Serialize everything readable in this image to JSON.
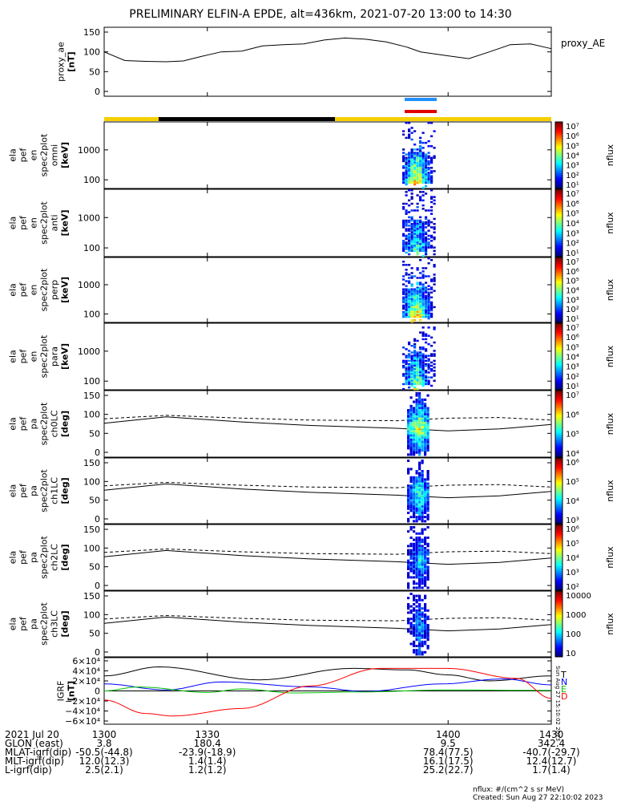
{
  "title": "PRELIMINARY ELFIN-A EPDE, alt=436km, 2021-07-20 13:00 to 14:30",
  "panels": [
    {
      "id": "ae",
      "ylabel_lines": [
        "proxy_ae",
        "[nT]"
      ],
      "legend": "proxy_AE",
      "yticks": [
        "150",
        "100",
        "50",
        "0"
      ]
    },
    {
      "id": "omni",
      "ylabel_lines": [
        "ela",
        "pef",
        "en",
        "spec2plot",
        "omni",
        "[keV]"
      ],
      "yticks": [
        "1000",
        "100"
      ],
      "cbar_ticks": [
        "10⁷",
        "10⁶",
        "10⁵",
        "10⁴",
        "10³",
        "10²",
        "10¹"
      ],
      "cbar_label": "nflux"
    },
    {
      "id": "anti",
      "ylabel_lines": [
        "ela",
        "pef",
        "en",
        "spec2plot",
        "anti",
        "[keV]"
      ],
      "yticks": [
        "1000",
        "100"
      ],
      "cbar_ticks": [
        "10⁷",
        "10⁶",
        "10⁵",
        "10⁴",
        "10³",
        "10²",
        "10¹"
      ],
      "cbar_label": "nflux"
    },
    {
      "id": "perp",
      "ylabel_lines": [
        "ela",
        "pef",
        "en",
        "spec2plot",
        "perp",
        "[keV]"
      ],
      "yticks": [
        "1000",
        "100"
      ],
      "cbar_ticks": [
        "10⁷",
        "10⁶",
        "10⁵",
        "10⁴",
        "10³",
        "10²",
        "10¹"
      ],
      "cbar_label": "nflux"
    },
    {
      "id": "para",
      "ylabel_lines": [
        "ela",
        "pef",
        "en",
        "spec2plot",
        "para",
        "[keV]"
      ],
      "yticks": [
        "1000",
        "100"
      ],
      "cbar_ticks": [
        "10⁷",
        "10⁶",
        "10⁵",
        "10⁴",
        "10³",
        "10²",
        "10¹"
      ],
      "cbar_label": "nflux"
    },
    {
      "id": "ch0",
      "ylabel_lines": [
        "ela",
        "pef",
        "pa",
        "spec2plot",
        "ch0LC",
        "[deg]"
      ],
      "yticks": [
        "150",
        "100",
        "50",
        "0"
      ],
      "cbar_ticks": [
        "10⁷",
        "10⁶",
        "10⁵",
        "10⁴"
      ],
      "cbar_label": "nflux"
    },
    {
      "id": "ch1",
      "ylabel_lines": [
        "ela",
        "pef",
        "pa",
        "spec2plot",
        "ch1LC",
        "[deg]"
      ],
      "yticks": [
        "150",
        "100",
        "50",
        "0"
      ],
      "cbar_ticks": [
        "10⁶",
        "10⁵",
        "10⁴",
        "10³"
      ],
      "cbar_label": "nflux"
    },
    {
      "id": "ch2",
      "ylabel_lines": [
        "ela",
        "pef",
        "pa",
        "spec2plot",
        "ch2LC",
        "[deg]"
      ],
      "yticks": [
        "150",
        "100",
        "50",
        "0"
      ],
      "cbar_ticks": [
        "10⁶",
        "10⁵",
        "10⁴",
        "10³",
        "10²"
      ],
      "cbar_label": "nflux"
    },
    {
      "id": "ch3",
      "ylabel_lines": [
        "ela",
        "pef",
        "pa",
        "spec2plot",
        "ch3LC",
        "[deg]"
      ],
      "yticks": [
        "150",
        "100",
        "50",
        "0"
      ],
      "cbar_ticks": [
        "10000",
        "1000",
        "100",
        "10"
      ],
      "cbar_label": "nflux"
    },
    {
      "id": "igrf",
      "ylabel_lines": [
        "IGRF",
        "[nT]"
      ],
      "yticks": [
        "6×10⁴",
        "4×10⁴",
        "2×10⁴",
        "0",
        "−2×10⁴",
        "−4×10⁴",
        "−6×10⁴"
      ],
      "legend_letters": [
        "T",
        "N",
        "E",
        "D"
      ]
    }
  ],
  "xaxis": {
    "ticks": [
      "1300",
      "1330",
      "1400",
      "1430"
    ],
    "rows": [
      {
        "label": "2021 Jul 20",
        "values": [
          "1300",
          "1330",
          "1400",
          "1430"
        ]
      },
      {
        "label": "GLON (east)",
        "values": [
          "3.8",
          "180.4",
          "9.5",
          "342.4"
        ]
      },
      {
        "label": "MLAT-igrf(dip)",
        "values": [
          "-50.5(-44.8)",
          "-23.9(-18.9)",
          "78.4(77.5)",
          "-40.7(-29.7)"
        ]
      },
      {
        "label": "MLT-igrf(dip)",
        "values": [
          "12.0(12.3)",
          "1.4(1.4)",
          "16.1(17.5)",
          "12.4(12.7)"
        ]
      },
      {
        "label": "L-igrf(dip)",
        "values": [
          "2.5(2.1)",
          "1.2(1.2)",
          "25.2(22.7)",
          "1.7(1.4)"
        ]
      }
    ]
  },
  "footer": {
    "units": "nflux: #/(cm^2 s sr MeV)",
    "created": "Created: Sun Aug 27 22:10:02 2023",
    "side_stamp": "Sun Aug 27 15:10:02 2023"
  },
  "chart_data": [
    {
      "type": "line",
      "panel": "proxy_ae",
      "xlabel": "",
      "ylabel": "proxy_ae [nT]",
      "xlim": [
        1300,
        1430
      ],
      "ylim": [
        0,
        150
      ],
      "series": [
        {
          "name": "proxy_AE",
          "x": [
            1300,
            1306,
            1312,
            1318,
            1323,
            1328,
            1334,
            1340,
            1346,
            1352,
            1358,
            1364,
            1370,
            1376,
            1382,
            1388,
            1392,
            1400,
            1406,
            1412,
            1418,
            1424,
            1430
          ],
          "values": [
            100,
            78,
            76,
            75,
            77,
            88,
            100,
            102,
            115,
            118,
            120,
            130,
            135,
            132,
            125,
            112,
            100,
            90,
            83,
            100,
            118,
            120,
            108
          ]
        }
      ]
    },
    {
      "type": "heatmap",
      "panel": "omni",
      "ylabel": "[keV]",
      "colorbar": "nflux",
      "clim_log10": [
        1,
        7
      ]
    },
    {
      "type": "heatmap",
      "panel": "anti",
      "ylabel": "[keV]",
      "colorbar": "nflux",
      "clim_log10": [
        1,
        7
      ]
    },
    {
      "type": "heatmap",
      "panel": "perp",
      "ylabel": "[keV]",
      "colorbar": "nflux",
      "clim_log10": [
        1,
        7
      ]
    },
    {
      "type": "heatmap",
      "panel": "para",
      "ylabel": "[keV]",
      "colorbar": "nflux",
      "clim_log10": [
        1,
        7
      ]
    },
    {
      "type": "heatmap",
      "panel": "ch0LC",
      "ylabel": "[deg]",
      "ylim": [
        0,
        180
      ],
      "colorbar": "nflux"
    },
    {
      "type": "heatmap",
      "panel": "ch1LC",
      "ylabel": "[deg]",
      "ylim": [
        0,
        180
      ],
      "colorbar": "nflux"
    },
    {
      "type": "heatmap",
      "panel": "ch2LC",
      "ylabel": "[deg]",
      "ylim": [
        0,
        180
      ],
      "colorbar": "nflux"
    },
    {
      "type": "heatmap",
      "panel": "ch3LC",
      "ylabel": "[deg]",
      "ylim": [
        0,
        180
      ],
      "colorbar": "nflux"
    },
    {
      "type": "line",
      "panel": "IGRF",
      "ylabel": "IGRF [nT]",
      "ylim": [
        -60000,
        60000
      ],
      "series": [
        {
          "name": "T",
          "color": "#000000",
          "x": [
            1300,
            1316,
            1345,
            1372,
            1388,
            1400,
            1412,
            1430
          ],
          "values": [
            30000,
            48000,
            22000,
            45000,
            42000,
            32000,
            20000,
            30000
          ]
        },
        {
          "name": "N",
          "color": "#0000ff",
          "x": [
            1300,
            1318,
            1334,
            1360,
            1376,
            1398,
            1416,
            1430
          ],
          "values": [
            14000,
            2000,
            18000,
            8000,
            -1000,
            14000,
            24000,
            12000
          ]
        },
        {
          "name": "E",
          "color": "#00c000",
          "x": [
            1300,
            1310,
            1330,
            1340,
            1355,
            1375,
            1400,
            1430
          ],
          "values": [
            0,
            8000,
            -3000,
            4000,
            -4000,
            -2000,
            2000,
            1000
          ]
        },
        {
          "name": "D",
          "color": "#ff0000",
          "x": [
            1300,
            1312,
            1320,
            1340,
            1360,
            1380,
            1400,
            1420,
            1430
          ],
          "values": [
            -18000,
            -45000,
            -50000,
            -35000,
            10000,
            45000,
            45000,
            25000,
            -15000
          ]
        }
      ]
    }
  ]
}
